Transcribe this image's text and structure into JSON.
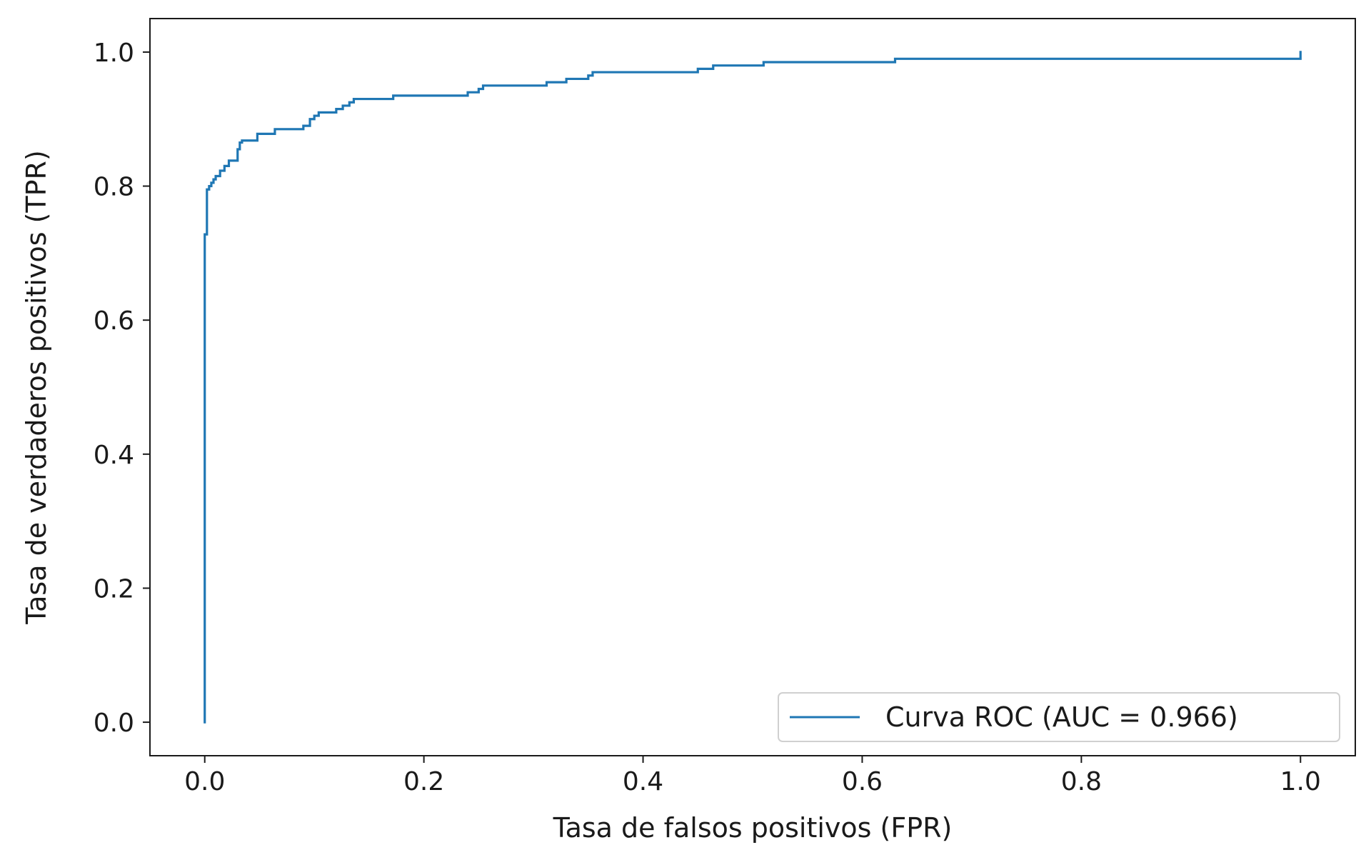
{
  "chart_data": {
    "type": "line",
    "title": "",
    "xlabel": "Tasa de falsos positivos (FPR)",
    "ylabel": "Tasa de verdaderos positivos (TPR)",
    "xlim": [
      -0.05,
      1.05
    ],
    "ylim": [
      -0.05,
      1.05
    ],
    "x_ticks": [
      0.0,
      0.2,
      0.4,
      0.6,
      0.8,
      1.0
    ],
    "x_tick_labels": [
      "0.0",
      "0.2",
      "0.4",
      "0.6",
      "0.8",
      "1.0"
    ],
    "y_ticks": [
      0.0,
      0.2,
      0.4,
      0.6,
      0.8,
      1.0
    ],
    "y_tick_labels": [
      "0.0",
      "0.2",
      "0.4",
      "0.6",
      "0.8",
      "1.0"
    ],
    "grid": false,
    "legend_position": "lower-right",
    "series": [
      {
        "name": "Curva ROC (AUC = 0.966)",
        "color": "#1f77b4",
        "step": true,
        "x": [
          0.0,
          0.0,
          0.002,
          0.002,
          0.004,
          0.006,
          0.008,
          0.01,
          0.014,
          0.018,
          0.022,
          0.024,
          0.03,
          0.032,
          0.034,
          0.044,
          0.048,
          0.06,
          0.064,
          0.084,
          0.09,
          0.096,
          0.1,
          0.104,
          0.114,
          0.12,
          0.126,
          0.132,
          0.136,
          0.172,
          0.236,
          0.24,
          0.25,
          0.254,
          0.31,
          0.312,
          0.33,
          0.35,
          0.354,
          0.45,
          0.464,
          0.51,
          0.63,
          1.0
        ],
        "y": [
          0.0,
          0.728,
          0.728,
          0.795,
          0.8,
          0.805,
          0.81,
          0.815,
          0.823,
          0.83,
          0.838,
          0.838,
          0.855,
          0.865,
          0.868,
          0.868,
          0.878,
          0.878,
          0.885,
          0.885,
          0.89,
          0.9,
          0.905,
          0.91,
          0.91,
          0.915,
          0.92,
          0.925,
          0.93,
          0.935,
          0.935,
          0.94,
          0.945,
          0.95,
          0.95,
          0.955,
          0.96,
          0.965,
          0.97,
          0.975,
          0.98,
          0.985,
          0.99,
          1.0
        ]
      }
    ]
  }
}
